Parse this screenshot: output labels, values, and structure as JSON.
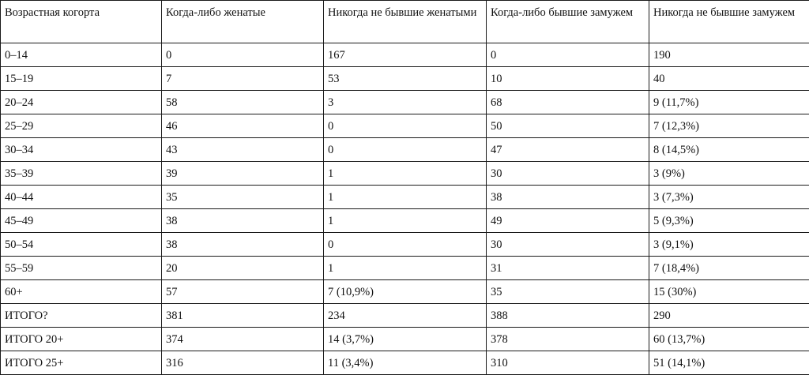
{
  "table": {
    "headers": [
      "Возрастная когорта",
      "Когда-либо женатые",
      "Никогда не бывшие женатыми",
      "Когда-либо бывшие замужем",
      "Никогда не бывшие замужем"
    ],
    "rows": [
      [
        "0–14",
        "0",
        "167",
        "0",
        "190"
      ],
      [
        "15–19",
        "7",
        "53",
        "10",
        "40"
      ],
      [
        "20–24",
        "58",
        "3",
        "68",
        "9 (11,7%)"
      ],
      [
        "25–29",
        "46",
        "0",
        "50",
        "7 (12,3%)"
      ],
      [
        "30–34",
        "43",
        "0",
        "47",
        "8 (14,5%)"
      ],
      [
        "35–39",
        "39",
        "1",
        "30",
        "3 (9%)"
      ],
      [
        "40–44",
        "35",
        "1",
        "38",
        "3 (7,3%)"
      ],
      [
        "45–49",
        "38",
        "1",
        "49",
        "5 (9,3%)"
      ],
      [
        "50–54",
        "38",
        "0",
        "30",
        "3 (9,1%)"
      ],
      [
        "55–59",
        "20",
        "1",
        "31",
        "7 (18,4%)"
      ],
      [
        "60+",
        "57",
        "7 (10,9%)",
        "35",
        "15 (30%)"
      ],
      [
        "ИТОГО?",
        "381",
        "234",
        "388",
        "290"
      ],
      [
        "ИТОГО 20+",
        "374",
        "14 (3,7%)",
        "378",
        "60 (13,7%)"
      ],
      [
        "ИТОГО 25+",
        "316",
        "11 (3,4%)",
        "310",
        "51 (14,1%)"
      ]
    ]
  }
}
